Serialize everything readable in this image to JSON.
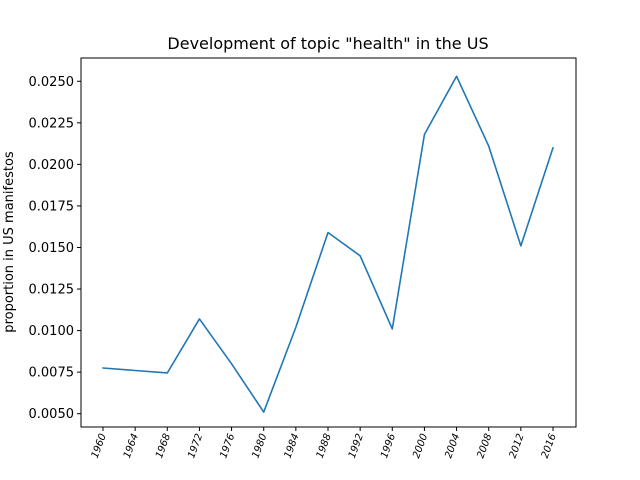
{
  "chart_data": {
    "type": "line",
    "title": "Development of topic \"health\" in the US",
    "xlabel": "",
    "ylabel": "proportion in US manifestos",
    "categories": [
      "1960",
      "1964",
      "1968",
      "1972",
      "1976",
      "1980",
      "1984",
      "1988",
      "1992",
      "1996",
      "2000",
      "2004",
      "2008",
      "2012",
      "2016"
    ],
    "series": [
      {
        "values": [
          0.00775,
          0.0076,
          0.00745,
          0.0107,
          0.008,
          0.0051,
          0.0102,
          0.0159,
          0.0145,
          0.0101,
          0.0218,
          0.0253,
          0.0211,
          0.0151,
          0.021
        ]
      }
    ],
    "yticks": [
      "0.0050",
      "0.0075",
      "0.0100",
      "0.0125",
      "0.0150",
      "0.0175",
      "0.0200",
      "0.0225",
      "0.0250"
    ],
    "ylim": [
      0.0042,
      0.0264
    ],
    "grid": false,
    "colors": {
      "series": "#1f77b4",
      "axes": "#000000",
      "background": "#ffffff"
    }
  }
}
